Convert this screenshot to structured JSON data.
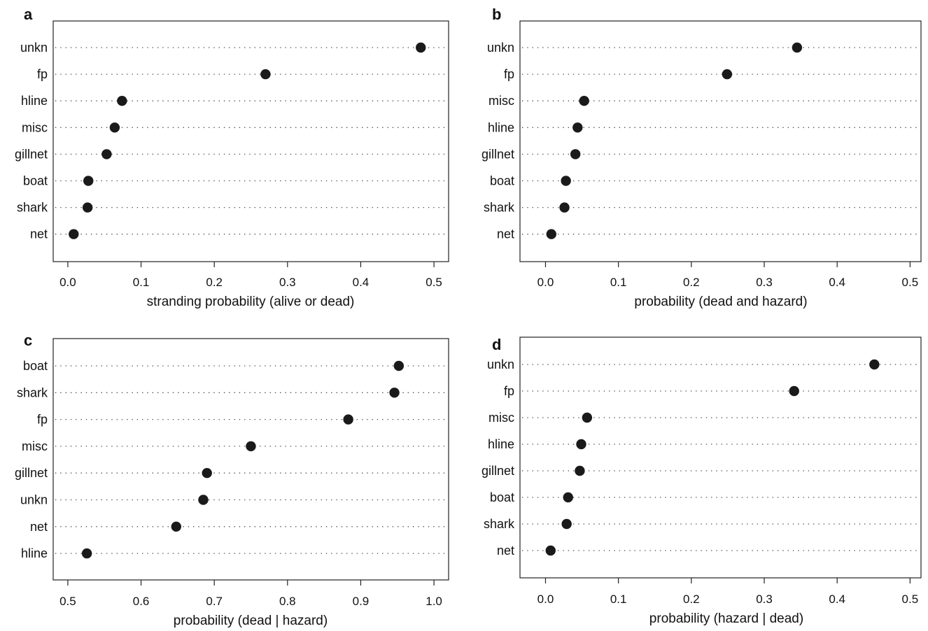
{
  "chart_data": [
    {
      "panel": "a",
      "type": "scatter",
      "xlabel": "stranding probability (alive or dead)",
      "xlim": [
        -0.02,
        0.52
      ],
      "xticks": [
        0.0,
        0.1,
        0.2,
        0.3,
        0.4,
        0.5
      ],
      "xtick_labels": [
        "0.0",
        "0.1",
        "0.2",
        "0.3",
        "0.4",
        "0.5"
      ],
      "categories": [
        "unkn",
        "fp",
        "hline",
        "misc",
        "gillnet",
        "boat",
        "shark",
        "net"
      ],
      "values": [
        0.482,
        0.27,
        0.074,
        0.064,
        0.053,
        0.028,
        0.027,
        0.008
      ],
      "grid": "dotted horizontal lines",
      "legend": "none"
    },
    {
      "panel": "b",
      "type": "scatter",
      "xlabel": "probability (dead and hazard)",
      "xlim": [
        -0.035,
        0.515
      ],
      "xticks": [
        0.0,
        0.1,
        0.2,
        0.3,
        0.4,
        0.5
      ],
      "xtick_labels": [
        "0.0",
        "0.1",
        "0.2",
        "0.3",
        "0.4",
        "0.5"
      ],
      "categories": [
        "unkn",
        "fp",
        "misc",
        "hline",
        "gillnet",
        "boat",
        "shark",
        "net"
      ],
      "values": [
        0.345,
        0.249,
        0.053,
        0.044,
        0.041,
        0.028,
        0.026,
        0.008
      ],
      "grid": "dotted horizontal lines",
      "legend": "none"
    },
    {
      "panel": "c",
      "type": "scatter",
      "xlabel": "probability (dead | hazard)",
      "xlim": [
        0.48,
        1.02
      ],
      "xticks": [
        0.5,
        0.6,
        0.7,
        0.8,
        0.9,
        1.0
      ],
      "xtick_labels": [
        "0.5",
        "0.6",
        "0.7",
        "0.8",
        "0.9",
        "1.0"
      ],
      "categories": [
        "boat",
        "shark",
        "fp",
        "misc",
        "gillnet",
        "unkn",
        "net",
        "hline"
      ],
      "values": [
        0.952,
        0.946,
        0.883,
        0.75,
        0.69,
        0.685,
        0.648,
        0.526
      ],
      "grid": "dotted horizontal lines",
      "legend": "none"
    },
    {
      "panel": "d",
      "type": "scatter",
      "xlabel": "probability (hazard | dead)",
      "xlim": [
        -0.035,
        0.515
      ],
      "xticks": [
        0.0,
        0.1,
        0.2,
        0.3,
        0.4,
        0.5
      ],
      "xtick_labels": [
        "0.0",
        "0.1",
        "0.2",
        "0.3",
        "0.4",
        "0.5"
      ],
      "categories": [
        "unkn",
        "fp",
        "misc",
        "hline",
        "gillnet",
        "boat",
        "shark",
        "net"
      ],
      "values": [
        0.451,
        0.341,
        0.057,
        0.049,
        0.047,
        0.031,
        0.029,
        0.007
      ],
      "grid": "dotted horizontal lines",
      "legend": "none"
    }
  ],
  "colors": {
    "marker": "#1a1a1a",
    "axis": "#222222",
    "grid": "#444444"
  }
}
